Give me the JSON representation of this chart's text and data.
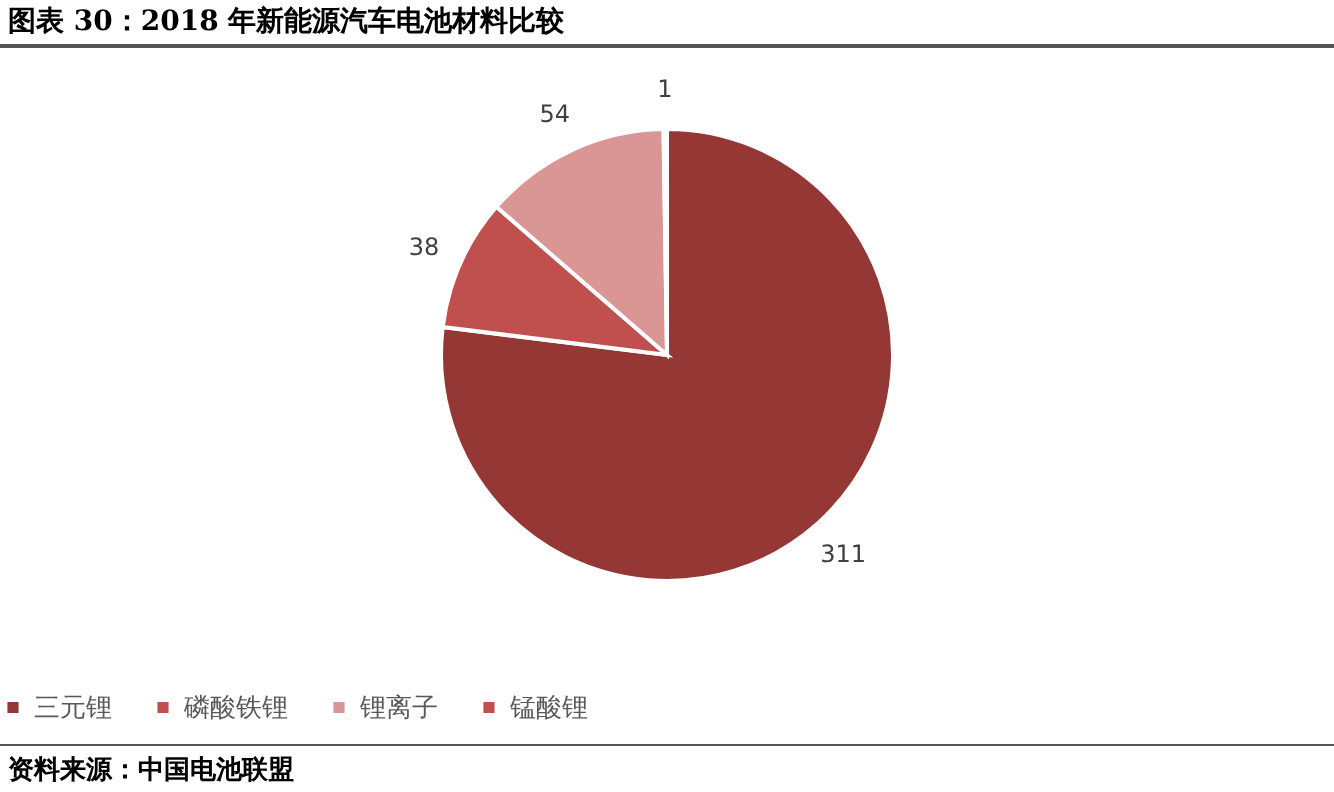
{
  "chart_data": {
    "type": "pie",
    "title": "图表 30：2018 年新能源汽车电池材料比较",
    "categories": [
      "三元锂",
      "磷酸铁锂",
      "锂离子",
      "锰酸锂"
    ],
    "values": [
      311,
      38,
      54,
      1
    ],
    "colors": [
      "#953735",
      "#c0504d",
      "#d99694",
      "#c0504d"
    ],
    "data_labels": true,
    "legend": "bottom",
    "annotations": [
      "资料来源：中国电池联盟"
    ]
  }
}
